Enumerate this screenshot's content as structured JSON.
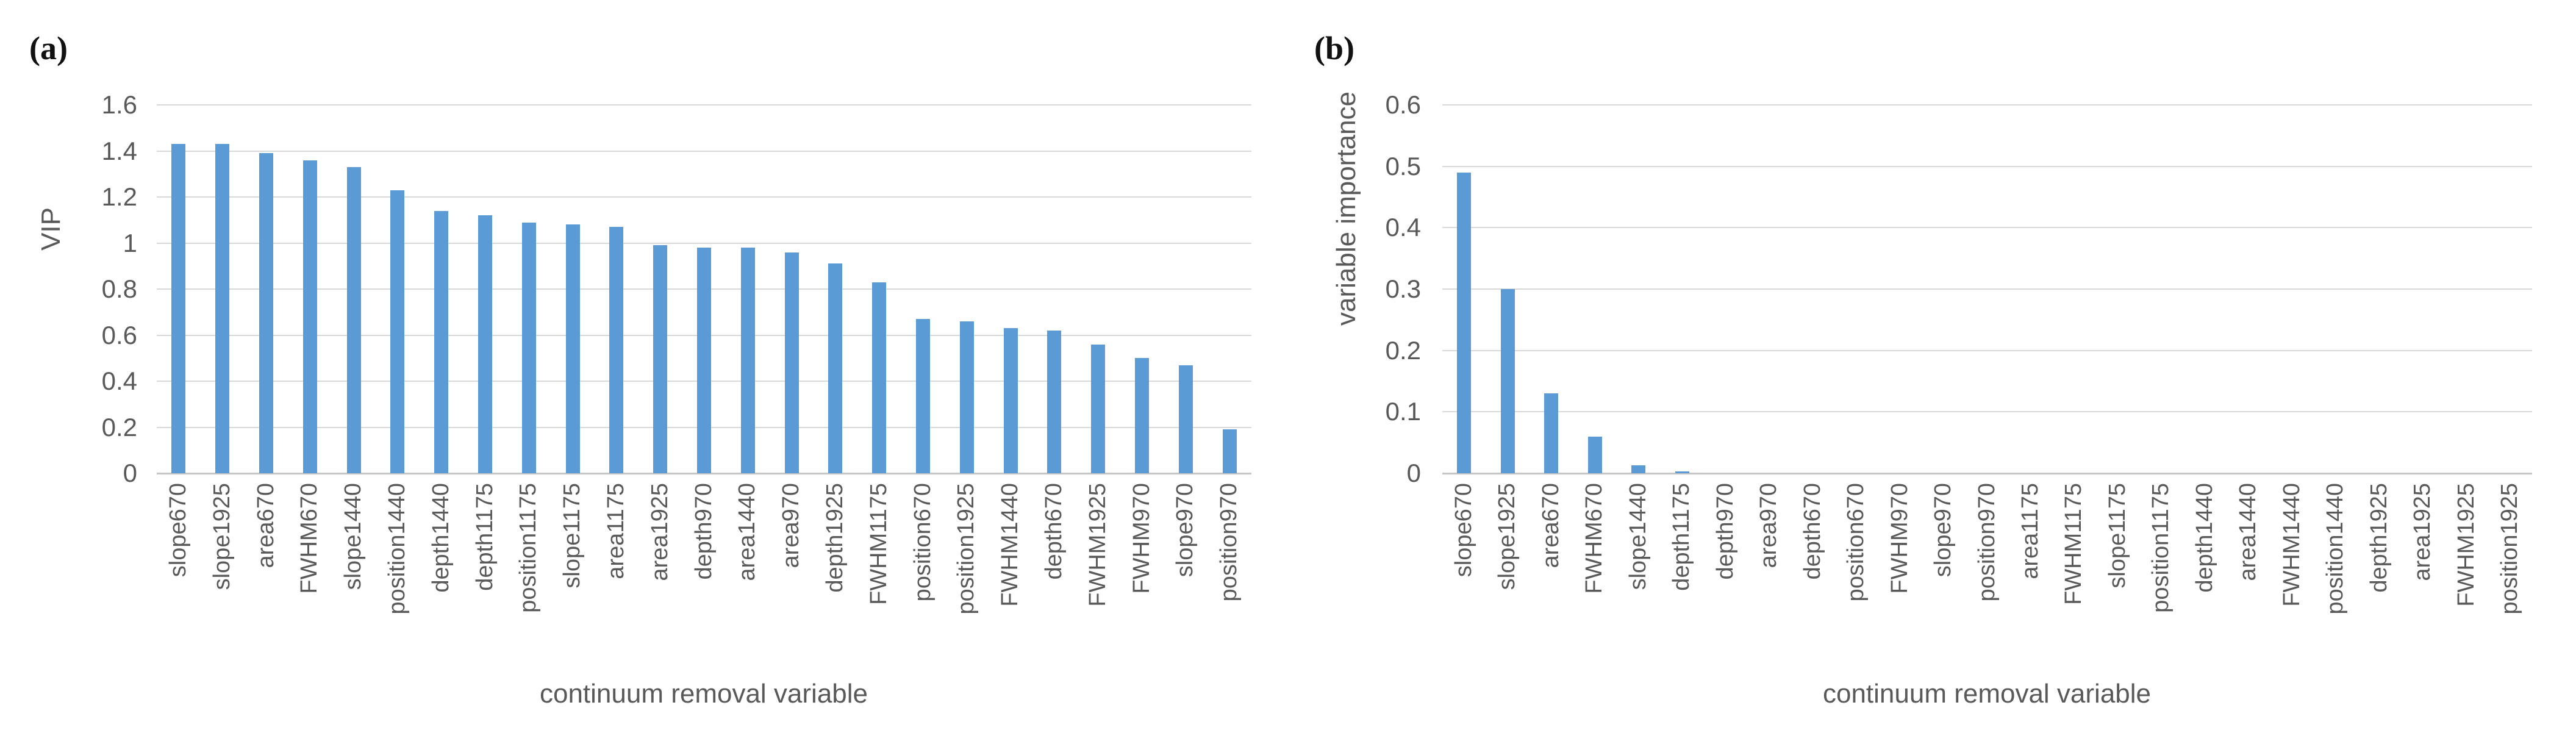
{
  "figure": {
    "panels": [
      {
        "label": "(a)"
      },
      {
        "label": "(b)"
      }
    ]
  },
  "colors": {
    "bar": "#5b9bd5",
    "gridline": "#d9d9d9",
    "axis_line": "#c6c6c6",
    "axis_text": "#595959",
    "panel_label": "#111111"
  },
  "chart_data": [
    {
      "type": "bar",
      "panel": "(a)",
      "xlabel": "continuum removal variable",
      "ylabel": "VIP",
      "ylim": [
        0,
        1.6
      ],
      "grid": true,
      "legend_position": "none",
      "ytick_values": [
        1.6,
        1.4,
        1.2,
        1.0,
        0.8,
        0.6,
        0.4,
        0.2,
        0
      ],
      "ytick_labels": [
        "1.6",
        "1.4",
        "1.2",
        "1",
        "0.8",
        "0.6",
        "0.4",
        "0.2",
        "0"
      ],
      "categories": [
        "slope670",
        "slope1925",
        "area670",
        "FWHM670",
        "slope1440",
        "position1440",
        "depth1440",
        "depth1175",
        "position1175",
        "slope1175",
        "area1175",
        "area1925",
        "depth970",
        "area1440",
        "area970",
        "depth1925",
        "FWHM1175",
        "position670",
        "position1925",
        "FWHM1440",
        "depth670",
        "FWHM1925",
        "FWHM970",
        "slope970",
        "position970"
      ],
      "values": [
        1.43,
        1.43,
        1.39,
        1.36,
        1.33,
        1.23,
        1.14,
        1.12,
        1.09,
        1.08,
        1.07,
        0.99,
        0.98,
        0.98,
        0.96,
        0.91,
        0.83,
        0.67,
        0.66,
        0.63,
        0.62,
        0.56,
        0.5,
        0.47,
        0.19
      ]
    },
    {
      "type": "bar",
      "panel": "(b)",
      "xlabel": "continuum removal variable",
      "ylabel": "variable importance",
      "ylim": [
        0,
        0.6
      ],
      "grid": true,
      "legend_position": "none",
      "ytick_values": [
        0.6,
        0.5,
        0.4,
        0.3,
        0.2,
        0.1,
        0
      ],
      "ytick_labels": [
        "0.6",
        "0.5",
        "0.4",
        "0.3",
        "0.2",
        "0.1",
        "0"
      ],
      "categories": [
        "slope670",
        "slope1925",
        "area670",
        "FWHM670",
        "slope1440",
        "depth1175",
        "depth970",
        "area970",
        "depth670",
        "position670",
        "FWHM970",
        "slope970",
        "position970",
        "area1175",
        "FWHM1175",
        "slope1175",
        "position1175",
        "depth1440",
        "area1440",
        "FWHM1440",
        "position1440",
        "depth1925",
        "area1925",
        "FWHM1925",
        "position1925"
      ],
      "values": [
        0.49,
        0.3,
        0.13,
        0.06,
        0.013,
        0.003,
        0,
        0,
        0,
        0,
        0,
        0,
        0,
        0,
        0,
        0,
        0,
        0,
        0,
        0,
        0,
        0,
        0,
        0,
        0
      ]
    }
  ]
}
